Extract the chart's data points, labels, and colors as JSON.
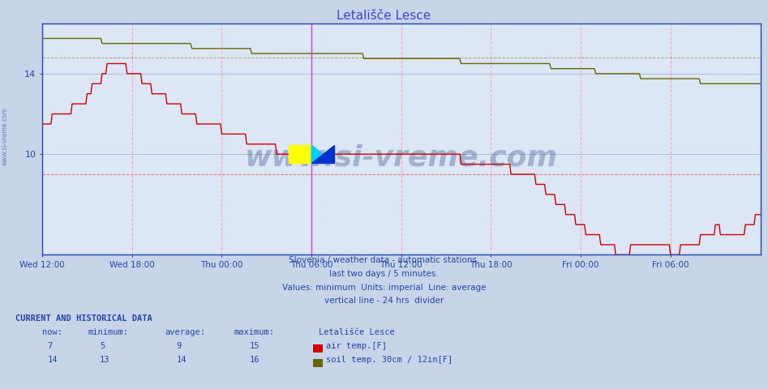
{
  "title": "Letališče Lesce",
  "title_color": "#4444cc",
  "bg_color": "#c8d4e8",
  "plot_bg_color": "#dce6f5",
  "fig_size": [
    9.47,
    4.8
  ],
  "dpi": 100,
  "x_tick_labels": [
    "Wed 12:00",
    "Wed 18:00",
    "Thu 00:00",
    "Thu 06:00",
    "Thu 12:00",
    "Thu 18:00",
    "Fri 00:00",
    "Fri 06:00"
  ],
  "x_tick_positions": [
    0,
    72,
    144,
    216,
    288,
    360,
    432,
    504
  ],
  "total_points": 577,
  "y_min": 5.0,
  "y_max": 16.5,
  "y_ticks": [
    10,
    14
  ],
  "divider_x": 216,
  "air_color": "#cc0000",
  "soil_color": "#666600",
  "air_avg": 9.0,
  "soil_avg": 14.8,
  "air_min": 5,
  "air_max": 15,
  "soil_min": 13,
  "soil_max": 16,
  "soil_now": 14,
  "air_now": 7,
  "subtitle1": "Slovenia / weather data - automatic stations.",
  "subtitle2": "last two days / 5 minutes.",
  "subtitle3": "Values: minimum  Units: imperial  Line: average",
  "subtitle4": "vertical line - 24 hrs  divider",
  "legend_title": "Letališče Lesce",
  "legend_item1": "air temp.[F]",
  "legend_item2": "soil temp. 30cm / 12in[F]",
  "footer_label": "CURRENT AND HISTORICAL DATA",
  "watermark": "www.si-vreme.com",
  "watermark_color": "#1a3a7a",
  "watermark_alpha": 0.3,
  "side_watermark": "www.si-vreme.com",
  "grid_vcolor": "#ffaaaa",
  "grid_hcolor": "#aabbdd",
  "spine_color": "#2244aa",
  "text_color": "#2244aa"
}
